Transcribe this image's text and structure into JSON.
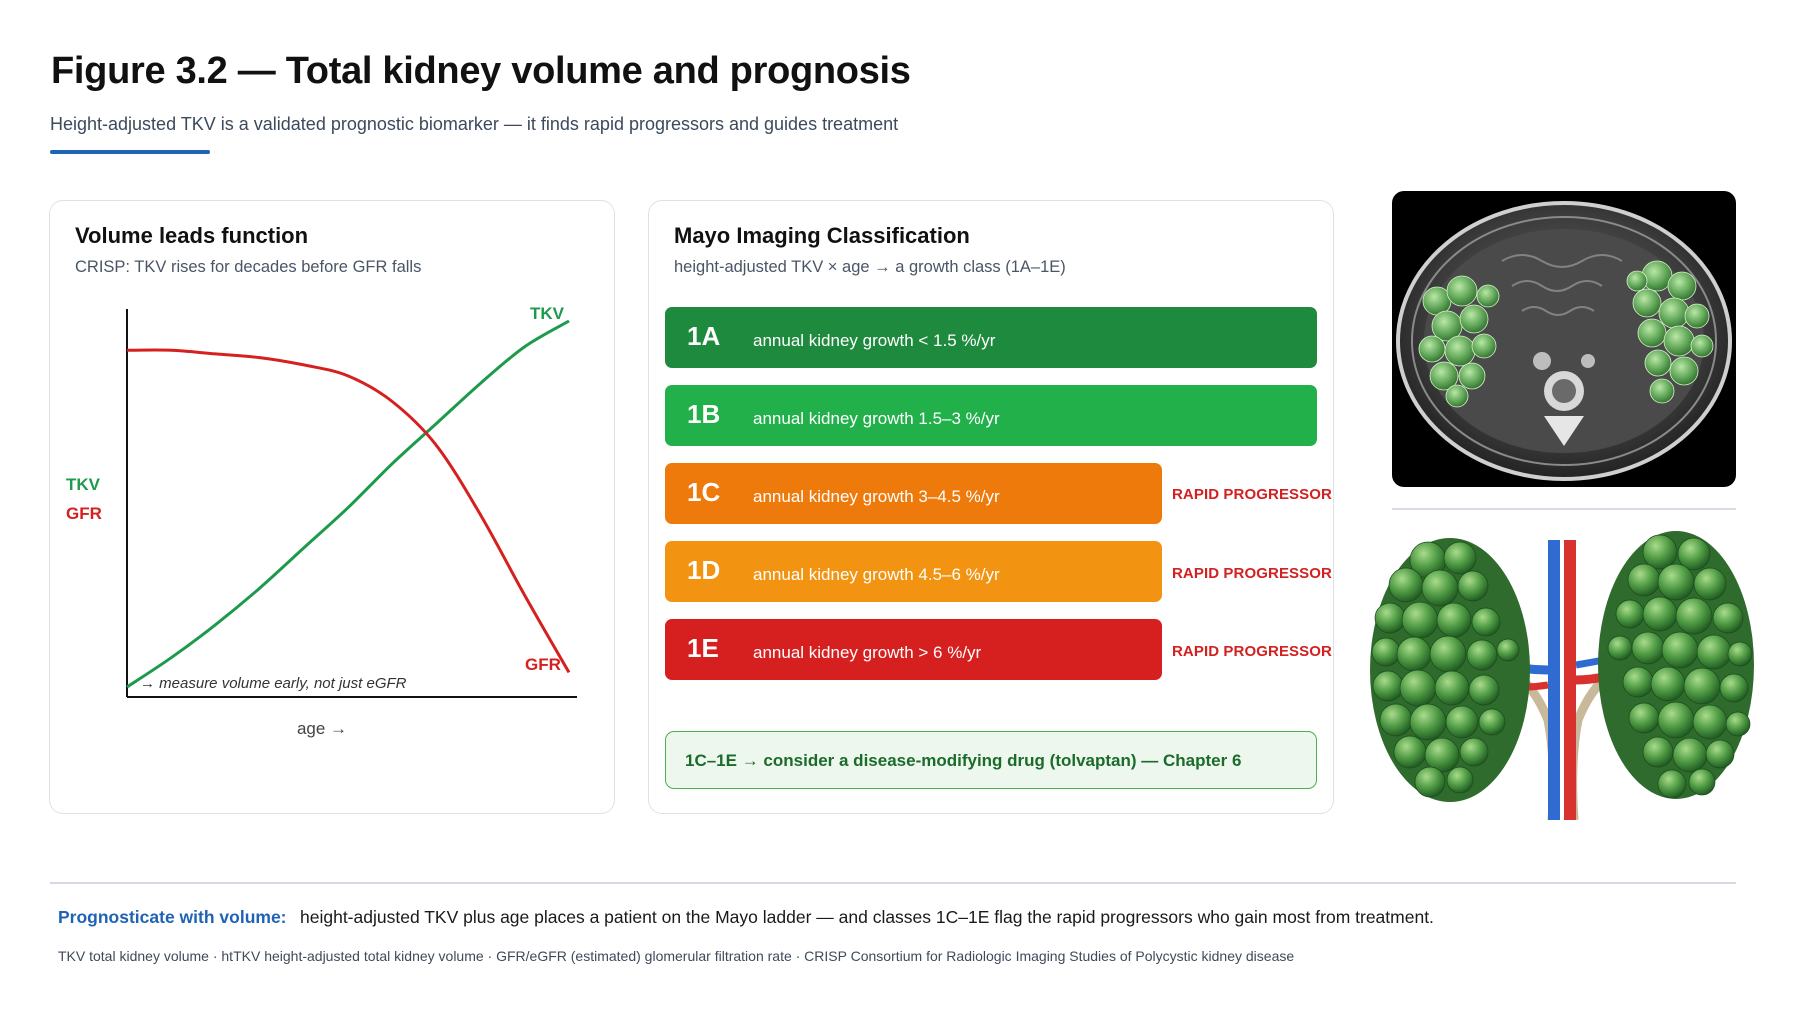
{
  "figure": {
    "title": "Figure 3.2 — Total kidney volume and prognosis",
    "subtitle": "Height-adjusted TKV is a validated prognostic biomarker — it finds rapid progressors and guides treatment"
  },
  "left_panel": {
    "title": "Volume leads function",
    "subtitle": "CRISP: TKV rises for decades before GFR falls",
    "note": "→ measure volume early, not just eGFR"
  },
  "chart_data": {
    "type": "line",
    "title": "Volume leads function",
    "xlabel": "age →",
    "ylabels": [
      "TKV",
      "GFR"
    ],
    "ticks": "none (schematic)",
    "x": [
      0,
      10,
      20,
      30,
      40,
      50,
      60,
      70,
      80,
      90,
      100
    ],
    "series": [
      {
        "name": "TKV",
        "color": "#1e9a4c",
        "values": [
          0,
          8,
          17,
          27,
          38,
          49,
          61,
          72,
          83,
          93,
          100
        ]
      },
      {
        "name": "GFR",
        "color": "#d62020",
        "values": [
          92,
          92,
          91,
          90,
          88,
          85,
          78,
          66,
          47,
          25,
          4
        ]
      }
    ],
    "series_end_labels": [
      "TKV",
      "GFR"
    ],
    "ylim": [
      0,
      100
    ]
  },
  "mayo": {
    "title": "Mayo Imaging Classification",
    "subtitle": "height-adjusted TKV × age → a growth class (1A–1E)",
    "classes": [
      {
        "code": "1A",
        "text": "annual kidney growth < 1.5 %/yr",
        "color": "#1e8a3e",
        "rapid": ""
      },
      {
        "code": "1B",
        "text": "annual kidney growth 1.5–3 %/yr",
        "color": "#22b04b",
        "rapid": ""
      },
      {
        "code": "1C",
        "text": "annual kidney growth 3–4.5 %/yr",
        "color": "#ee7a0c",
        "rapid": "RAPID PROGRESSOR"
      },
      {
        "code": "1D",
        "text": "annual kidney growth 4.5–6 %/yr",
        "color": "#f29311",
        "rapid": "RAPID PROGRESSOR"
      },
      {
        "code": "1E",
        "text": "annual kidney growth > 6 %/yr",
        "color": "#d62020",
        "rapid": "RAPID PROGRESSOR"
      }
    ],
    "callout": "1C–1E → consider a disease-modifying drug (tolvaptan) — Chapter 6"
  },
  "footer": {
    "takeaway_label": "Prognosticate with volume:",
    "takeaway_text": "height-adjusted TKV plus age places a patient on the Mayo ladder — and classes 1C–1E flag the rapid progressors who gain most from treatment.",
    "glossary": "TKV total kidney volume · htTKV height-adjusted total kidney volume · GFR/eGFR (estimated) glomerular filtration rate · CRISP Consortium for Radiologic Imaging Studies of Polycystic kidney disease"
  },
  "colors": {
    "accent_blue": "#1f63b5",
    "tkv_green": "#1e9a4c",
    "gfr_red": "#d62020",
    "rapid_red": "#d32020"
  }
}
